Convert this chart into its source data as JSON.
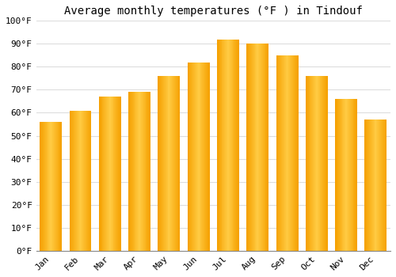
{
  "title": "Average monthly temperatures (°F ) in Tindouf",
  "months": [
    "Jan",
    "Feb",
    "Mar",
    "Apr",
    "May",
    "Jun",
    "Jul",
    "Aug",
    "Sep",
    "Oct",
    "Nov",
    "Dec"
  ],
  "values": [
    56,
    61,
    67,
    69,
    76,
    82,
    92,
    90,
    85,
    76,
    66,
    57
  ],
  "bar_color_light": "#FFCC44",
  "bar_color_dark": "#F5A000",
  "ylim": [
    0,
    100
  ],
  "yticks": [
    0,
    10,
    20,
    30,
    40,
    50,
    60,
    70,
    80,
    90,
    100
  ],
  "background_color": "#FFFFFF",
  "plot_bg_color": "#FFFFFF",
  "grid_color": "#DDDDDD",
  "title_fontsize": 10,
  "tick_fontsize": 8,
  "bar_width": 0.75
}
